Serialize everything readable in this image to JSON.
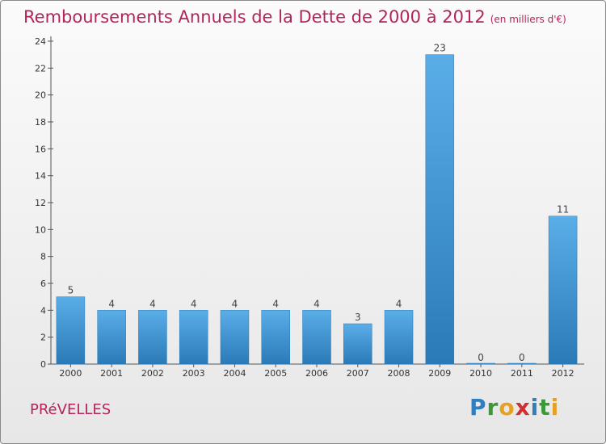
{
  "header": {
    "title": "Remboursements Annuels de la Dette de 2000 à 2012",
    "subtitle": "(en milliers d'€)"
  },
  "footer": {
    "commune": "PRéVELLES",
    "logo_letters": [
      "P",
      "r",
      "o",
      "x",
      "i",
      "t",
      "i"
    ]
  },
  "colors": {
    "title": "#b3245c",
    "bar_top": "#5aaee8",
    "bar_bottom": "#2a7ab8"
  },
  "chart_data": {
    "type": "bar",
    "title": "Remboursements Annuels de la Dette de 2000 à 2012",
    "subtitle": "(en milliers d'€)",
    "categories": [
      "2000",
      "2001",
      "2002",
      "2003",
      "2004",
      "2005",
      "2006",
      "2007",
      "2008",
      "2009",
      "2010",
      "2011",
      "2012"
    ],
    "values": [
      5,
      4,
      4,
      4,
      4,
      4,
      4,
      3,
      4,
      23,
      0,
      0,
      11
    ],
    "data_labels": [
      "5",
      "4",
      "4",
      "4",
      "4",
      "4",
      "4",
      "3",
      "4",
      "23",
      "0",
      "0",
      "11"
    ],
    "ylim": [
      0,
      24
    ],
    "yticks": [
      "0",
      "2",
      "4",
      "6",
      "8",
      "10",
      "12",
      "14",
      "16",
      "18",
      "20",
      "22",
      "24"
    ],
    "grid": false,
    "legend": "none"
  }
}
